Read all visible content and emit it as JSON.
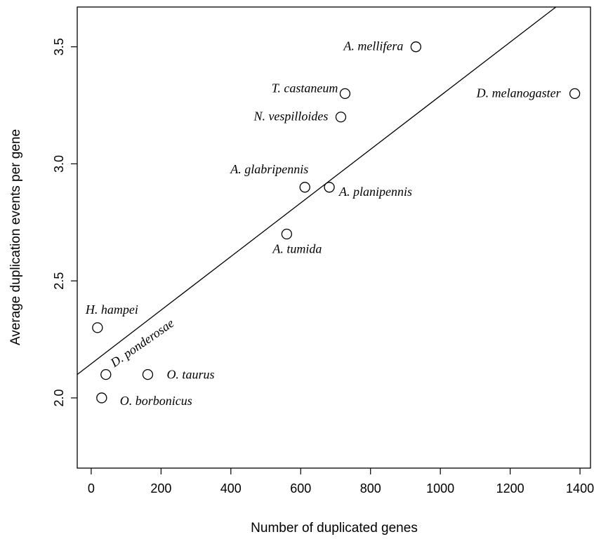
{
  "chart_data": {
    "type": "scatter",
    "title": "",
    "xlabel": "Number of duplicated genes",
    "ylabel": "Average duplication events per gene",
    "xlim": [
      -40,
      1430
    ],
    "ylim": [
      1.7,
      3.67
    ],
    "xticks": [
      0,
      200,
      400,
      600,
      800,
      1000,
      1200,
      1400
    ],
    "yticks": [
      2.0,
      2.5,
      3.0,
      3.5
    ],
    "xtick_labels": [
      "0",
      "200",
      "400",
      "600",
      "800",
      "1000",
      "1200",
      "1400"
    ],
    "ytick_labels": [
      "2.0",
      "2.5",
      "3.0",
      "3.5"
    ],
    "grid": false,
    "legend": "none",
    "points": [
      {
        "label": "A. mellifera",
        "x": 930,
        "y": 3.5
      },
      {
        "label": "T. castaneum",
        "x": 727,
        "y": 3.3
      },
      {
        "label": "D. melanogaster",
        "x": 1385,
        "y": 3.3
      },
      {
        "label": "N. vespilloides",
        "x": 715,
        "y": 3.2
      },
      {
        "label": "A. glabripennis",
        "x": 612,
        "y": 2.9
      },
      {
        "label": "A. planipennis",
        "x": 682,
        "y": 2.9
      },
      {
        "label": "A. tumida",
        "x": 560,
        "y": 2.7
      },
      {
        "label": "H. hampei",
        "x": 18,
        "y": 2.3
      },
      {
        "label": "D. ponderosae",
        "x": 42,
        "y": 2.1
      },
      {
        "label": "O. taurus",
        "x": 162,
        "y": 2.1
      },
      {
        "label": "O. borbonicus",
        "x": 30,
        "y": 2.0
      }
    ],
    "fit_line": {
      "x": [
        -40,
        1331
      ],
      "y": [
        2.1,
        3.67
      ]
    }
  }
}
